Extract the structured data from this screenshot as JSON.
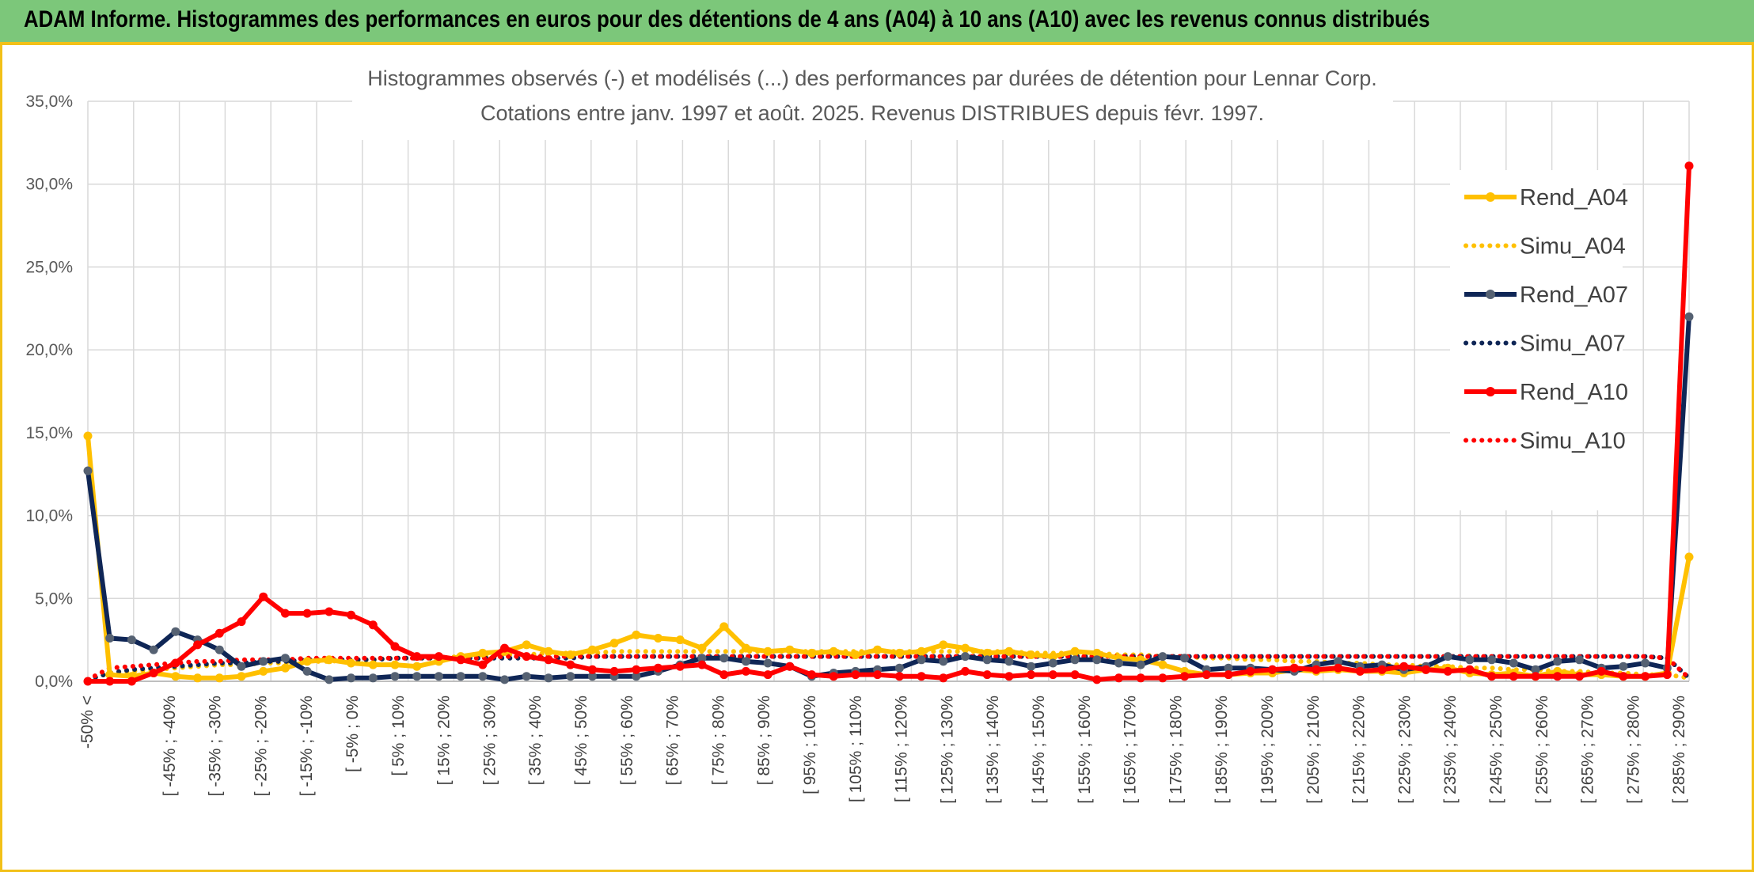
{
  "banner": {
    "title": "ADAM Informe. Histogrammes des performances en euros pour des détentions de 4 ans (A04) à 10 ans (A10) avec les revenus connus distribués"
  },
  "chart_data": {
    "type": "line",
    "title": "Histogrammes observés (-) et modélisés (...) des performances par durées de détention pour Lennar Corp.",
    "subtitle": "Cotations entre janv. 1997 et août. 2025. Revenus DISTRIBUES depuis févr. 1997.",
    "xlabel": "",
    "ylabel": "",
    "ylim": [
      0,
      35
    ],
    "y_ticks": [
      "0,0%",
      "5,0%",
      "10,0%",
      "15,0%",
      "20,0%",
      "25,0%",
      "30,0%",
      "35,0%"
    ],
    "grid": true,
    "legend_position": "right",
    "x_labels": [
      "-50% <",
      "[ -45% ; -40%",
      "[ -35% ; -30%",
      "[ -25% ; -20%",
      "[ -15% ; -10%",
      "[ -5% ; 0%",
      "[ 5% ; 10%",
      "[ 15% ; 20%",
      "[ 25% ; 30%",
      "[ 35% ; 40%",
      "[ 45% ; 50%",
      "[ 55% ; 60%",
      "[ 65% ; 70%",
      "[ 75% ; 80%",
      "[ 85% ; 90%",
      "[ 95% ; 100%",
      "[ 105% ; 110%",
      "[ 115% ; 120%",
      "[ 125% ; 130%",
      "[ 135% ; 140%",
      "[ 145% ; 150%",
      "[ 155% ; 160%",
      "[ 165% ; 170%",
      "[ 175% ; 180%",
      "[ 185% ; 190%",
      "[ 195% ; 200%",
      "[ 205% ; 210%",
      "[ 215% ; 220%",
      "[ 225% ; 230%",
      "[ 235% ; 240%",
      "[ 245% ; 250%",
      "[ 255% ; 260%",
      "[ 265% ; 270%",
      "[ 275% ; 280%",
      "[ 285% ; 290%"
    ],
    "series": [
      {
        "name": "Rend_A04",
        "color": "#ffc000",
        "style": "solid",
        "values": [
          14.8,
          0.4,
          0.3,
          0.5,
          0.3,
          0.2,
          0.2,
          0.3,
          0.6,
          0.8,
          1.2,
          1.3,
          1.1,
          1.0,
          1.0,
          0.9,
          1.2,
          1.5,
          1.7,
          1.8,
          2.2,
          1.8,
          1.6,
          1.9,
          2.3,
          2.8,
          2.6,
          2.5,
          2.0,
          3.3,
          2.0,
          1.8,
          1.9,
          1.7,
          1.8,
          1.6,
          1.9,
          1.7,
          1.8,
          2.2,
          2.0,
          1.7,
          1.8,
          1.6,
          1.5,
          1.8,
          1.7,
          1.4,
          1.3,
          1.0,
          0.6,
          0.4,
          0.4,
          0.5,
          0.5,
          0.7,
          0.6,
          0.7,
          0.6,
          0.6,
          0.5,
          0.7,
          0.8,
          0.5,
          0.4,
          0.5,
          0.3,
          0.6,
          0.4,
          0.4,
          0.3,
          0.3,
          0.5,
          7.5
        ]
      },
      {
        "name": "Simu_A04",
        "color": "#ffc000",
        "style": "dotted",
        "values": [
          0.1,
          0.5,
          0.6,
          0.7,
          0.8,
          0.9,
          1.0,
          1.0,
          1.1,
          1.1,
          1.2,
          1.2,
          1.3,
          1.3,
          1.4,
          1.4,
          1.4,
          1.5,
          1.5,
          1.6,
          1.6,
          1.7,
          1.7,
          1.7,
          1.8,
          1.8,
          1.8,
          1.8,
          1.8,
          1.8,
          1.8,
          1.8,
          1.8,
          1.8,
          1.8,
          1.8,
          1.8,
          1.8,
          1.8,
          1.8,
          1.8,
          1.8,
          1.8,
          1.7,
          1.7,
          1.7,
          1.7,
          1.6,
          1.6,
          1.5,
          1.5,
          1.4,
          1.4,
          1.3,
          1.3,
          1.2,
          1.2,
          1.1,
          1.1,
          1.0,
          1.0,
          0.9,
          0.9,
          0.8,
          0.8,
          0.7,
          0.7,
          0.6,
          0.6,
          0.5,
          0.5,
          0.4,
          0.4,
          0.2
        ]
      },
      {
        "name": "Rend_A07",
        "color": "#0f2656",
        "style": "solid",
        "values": [
          12.7,
          2.6,
          2.5,
          1.9,
          3.0,
          2.5,
          1.9,
          0.9,
          1.2,
          1.4,
          0.6,
          0.1,
          0.2,
          0.2,
          0.3,
          0.3,
          0.3,
          0.3,
          0.3,
          0.1,
          0.3,
          0.2,
          0.3,
          0.3,
          0.3,
          0.3,
          0.6,
          1.0,
          1.4,
          1.4,
          1.2,
          1.1,
          0.9,
          0.3,
          0.5,
          0.6,
          0.7,
          0.8,
          1.3,
          1.2,
          1.5,
          1.3,
          1.2,
          0.9,
          1.1,
          1.3,
          1.3,
          1.1,
          1.0,
          1.5,
          1.4,
          0.7,
          0.8,
          0.8,
          0.7,
          0.6,
          1.0,
          1.2,
          0.9,
          1.0,
          0.7,
          0.9,
          1.5,
          1.3,
          1.3,
          1.1,
          0.7,
          1.2,
          1.3,
          0.8,
          0.9,
          1.1,
          0.8,
          22.0
        ]
      },
      {
        "name": "Simu_A07",
        "color": "#0f2656",
        "style": "dotted",
        "values": [
          0.1,
          0.5,
          0.7,
          0.8,
          0.9,
          1.0,
          1.1,
          1.1,
          1.2,
          1.2,
          1.3,
          1.3,
          1.3,
          1.3,
          1.4,
          1.4,
          1.4,
          1.4,
          1.4,
          1.4,
          1.4,
          1.4,
          1.4,
          1.5,
          1.5,
          1.5,
          1.5,
          1.5,
          1.5,
          1.5,
          1.5,
          1.5,
          1.5,
          1.5,
          1.5,
          1.5,
          1.5,
          1.5,
          1.5,
          1.5,
          1.5,
          1.5,
          1.5,
          1.5,
          1.5,
          1.5,
          1.5,
          1.5,
          1.5,
          1.5,
          1.5,
          1.5,
          1.5,
          1.5,
          1.5,
          1.5,
          1.5,
          1.5,
          1.5,
          1.5,
          1.5,
          1.5,
          1.5,
          1.5,
          1.5,
          1.5,
          1.5,
          1.5,
          1.5,
          1.5,
          1.5,
          1.5,
          1.4,
          0.2
        ]
      },
      {
        "name": "Rend_A10",
        "color": "#ff0000",
        "style": "solid",
        "values": [
          0.0,
          0.0,
          0.0,
          0.5,
          1.1,
          2.2,
          2.9,
          3.6,
          5.1,
          4.1,
          4.1,
          4.2,
          4.0,
          3.4,
          2.1,
          1.5,
          1.5,
          1.3,
          1.0,
          2.0,
          1.5,
          1.3,
          1.0,
          0.7,
          0.6,
          0.7,
          0.8,
          0.9,
          1.0,
          0.4,
          0.6,
          0.4,
          0.9,
          0.4,
          0.3,
          0.4,
          0.4,
          0.3,
          0.3,
          0.2,
          0.6,
          0.4,
          0.3,
          0.4,
          0.4,
          0.4,
          0.1,
          0.2,
          0.2,
          0.2,
          0.3,
          0.4,
          0.4,
          0.6,
          0.7,
          0.8,
          0.7,
          0.8,
          0.6,
          0.7,
          0.9,
          0.7,
          0.6,
          0.7,
          0.3,
          0.3,
          0.3,
          0.3,
          0.3,
          0.6,
          0.3,
          0.3,
          0.4,
          31.1
        ]
      },
      {
        "name": "Simu_A10",
        "color": "#ff0000",
        "style": "dotted",
        "values": [
          0.1,
          0.8,
          0.9,
          1.0,
          1.1,
          1.2,
          1.2,
          1.3,
          1.3,
          1.3,
          1.4,
          1.4,
          1.4,
          1.4,
          1.4,
          1.4,
          1.4,
          1.4,
          1.4,
          1.5,
          1.5,
          1.5,
          1.5,
          1.5,
          1.5,
          1.5,
          1.5,
          1.5,
          1.5,
          1.5,
          1.5,
          1.5,
          1.5,
          1.5,
          1.5,
          1.5,
          1.5,
          1.5,
          1.5,
          1.5,
          1.5,
          1.5,
          1.5,
          1.5,
          1.5,
          1.5,
          1.5,
          1.5,
          1.5,
          1.5,
          1.5,
          1.5,
          1.5,
          1.5,
          1.5,
          1.5,
          1.5,
          1.5,
          1.5,
          1.5,
          1.5,
          1.5,
          1.5,
          1.5,
          1.5,
          1.5,
          1.5,
          1.5,
          1.5,
          1.5,
          1.5,
          1.5,
          1.4,
          0.2
        ]
      }
    ]
  }
}
